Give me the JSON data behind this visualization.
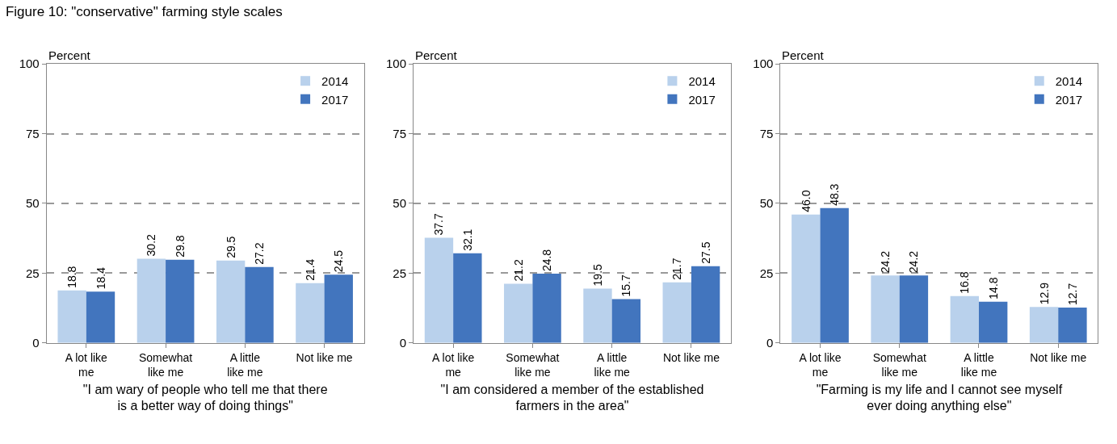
{
  "chart_data": [
    {
      "type": "bar",
      "title": "Figure 10: \"conservative\" farming style scales",
      "ylabel": "Percent",
      "xlabel": "\"I am wary of people who tell me that there is a better way of doing things\"",
      "categories": [
        "A lot like me",
        "Somewhat like me",
        "A little like me",
        "Not like me"
      ],
      "series": [
        {
          "name": "2014",
          "color": "#b9d1ec",
          "values": [
            18.8,
            30.2,
            29.5,
            21.4
          ],
          "value_labels": [
            "18.8",
            "30.2",
            "29.5",
            "21.4"
          ]
        },
        {
          "name": "2017",
          "color": "#4275be",
          "values": [
            18.4,
            29.8,
            27.2,
            24.5
          ],
          "value_labels": [
            "18.4",
            "29.8",
            "27.2",
            "24.5"
          ]
        }
      ],
      "ylim": [
        0,
        100
      ],
      "yticks": [
        0,
        25,
        50,
        75,
        100
      ],
      "grid": "y",
      "legend": "top right"
    },
    {
      "type": "bar",
      "ylabel": "Percent",
      "xlabel": "\"I am considered a member of the established farmers in the area\"",
      "categories": [
        "A lot like me",
        "Somewhat like me",
        "A little like me",
        "Not like me"
      ],
      "series": [
        {
          "name": "2014",
          "color": "#b9d1ec",
          "values": [
            37.7,
            21.2,
            19.5,
            21.7
          ],
          "value_labels": [
            "37.7",
            "21.2",
            "19.5",
            "21.7"
          ]
        },
        {
          "name": "2017",
          "color": "#4275be",
          "values": [
            32.1,
            24.8,
            15.7,
            27.5
          ],
          "value_labels": [
            "32.1",
            "24.8",
            "15.7",
            "27.5"
          ]
        }
      ],
      "ylim": [
        0,
        100
      ],
      "yticks": [
        0,
        25,
        50,
        75,
        100
      ],
      "grid": "y",
      "legend": "top right"
    },
    {
      "type": "bar",
      "ylabel": "Percent",
      "xlabel": "\"Farming is my life and I cannot see myself ever doing anything else\"",
      "categories": [
        "A lot like me",
        "Somewhat like me",
        "A little like me",
        "Not like me"
      ],
      "series": [
        {
          "name": "2014",
          "color": "#b9d1ec",
          "values": [
            46.0,
            24.2,
            16.8,
            12.9
          ],
          "value_labels": [
            "46.0",
            "24.2",
            "16.8",
            "12.9"
          ]
        },
        {
          "name": "2017",
          "color": "#4275be",
          "values": [
            48.3,
            24.2,
            14.8,
            12.7
          ],
          "value_labels": [
            "48.3",
            "24.2",
            "14.8",
            "12.7"
          ]
        }
      ],
      "ylim": [
        0,
        100
      ],
      "yticks": [
        0,
        25,
        50,
        75,
        100
      ],
      "grid": "y",
      "legend": "top right"
    }
  ]
}
